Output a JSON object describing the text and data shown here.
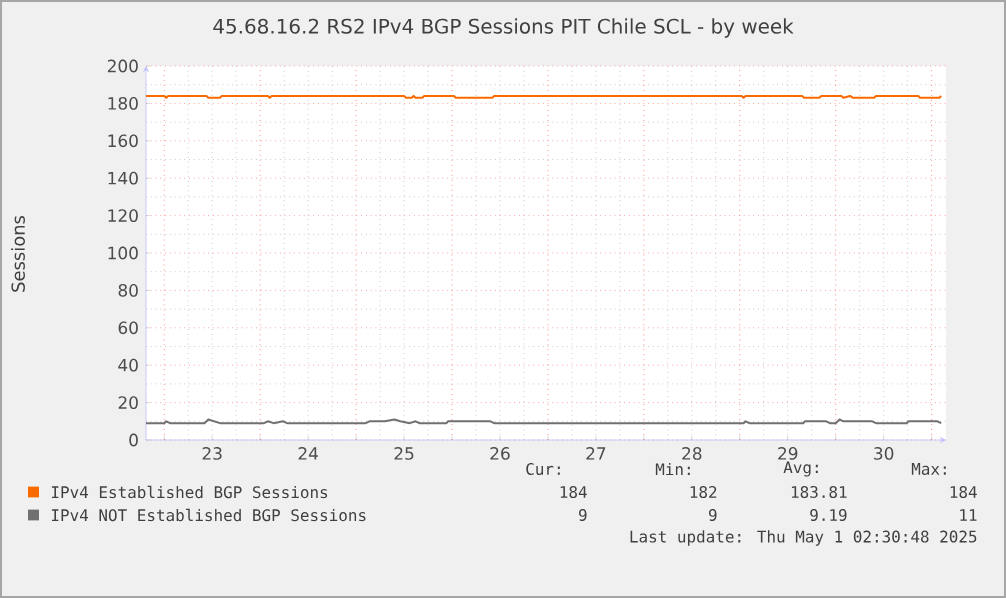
{
  "chart_data": {
    "type": "line",
    "title": "45.68.16.2 RS2 IPv4 BGP Sessions PIT Chile SCL - by week",
    "ylabel": "Sessions",
    "xlim": [
      22.81,
      31.15
    ],
    "ylim": [
      0,
      200
    ],
    "xticks": [
      {
        "value": 23,
        "label": null
      },
      {
        "value": 23.5,
        "label": "23"
      },
      {
        "value": 24,
        "label": null
      },
      {
        "value": 24.5,
        "label": "24"
      },
      {
        "value": 25,
        "label": null
      },
      {
        "value": 25.5,
        "label": "25"
      },
      {
        "value": 26,
        "label": null
      },
      {
        "value": 26.5,
        "label": "26"
      },
      {
        "value": 27,
        "label": null
      },
      {
        "value": 27.5,
        "label": "27"
      },
      {
        "value": 28,
        "label": null
      },
      {
        "value": 28.5,
        "label": "28"
      },
      {
        "value": 29,
        "label": null
      },
      {
        "value": 29.5,
        "label": "29"
      },
      {
        "value": 30,
        "label": null
      },
      {
        "value": 30.5,
        "label": "30"
      },
      {
        "value": 31,
        "label": null
      }
    ],
    "yticks": [
      0,
      20,
      40,
      60,
      80,
      100,
      120,
      140,
      160,
      180,
      200
    ],
    "grid": true,
    "legend": "bottom",
    "series": [
      {
        "name": "IPv4 Established BGP Sessions",
        "color": "#f96b00",
        "x": [
          22.81,
          23.0,
          23.02,
          23.04,
          23.44,
          23.46,
          23.58,
          23.6,
          24.08,
          24.1,
          24.12,
          25.5,
          25.52,
          25.58,
          25.6,
          25.62,
          25.69,
          25.71,
          26.02,
          26.04,
          26.42,
          26.44,
          29.02,
          29.04,
          29.06,
          29.65,
          29.67,
          29.83,
          29.85,
          30.06,
          30.08,
          30.15,
          30.18,
          30.4,
          30.42,
          30.86,
          30.88,
          31.08,
          31.1
        ],
        "values": [
          184,
          184,
          183,
          184,
          184,
          183,
          183,
          184,
          184,
          183,
          184,
          184,
          183,
          183,
          184,
          183,
          183,
          184,
          184,
          183,
          183,
          184,
          184,
          183,
          184,
          184,
          183,
          183,
          184,
          184,
          183,
          184,
          183,
          183,
          184,
          184,
          183,
          183,
          184
        ]
      },
      {
        "name": "IPv4 NOT Established BGP Sessions",
        "color": "#707070",
        "x": [
          22.81,
          23.0,
          23.02,
          23.06,
          23.42,
          23.46,
          23.52,
          23.58,
          24.04,
          24.08,
          24.14,
          24.24,
          24.28,
          25.1,
          25.14,
          25.3,
          25.4,
          25.46,
          25.56,
          25.62,
          25.66,
          25.94,
          25.96,
          26.4,
          26.44,
          29.04,
          29.06,
          29.1,
          29.66,
          29.68,
          29.9,
          29.94,
          30.0,
          30.04,
          30.08,
          30.38,
          30.42,
          30.74,
          30.76,
          31.06,
          31.1
        ],
        "values": [
          9,
          9,
          10,
          9,
          9,
          11,
          10,
          9,
          9,
          10,
          9,
          10,
          9,
          9,
          10,
          10,
          11,
          10,
          9,
          10,
          9,
          9,
          10,
          10,
          9,
          9,
          10,
          9,
          9,
          10,
          10,
          9,
          9,
          11,
          10,
          10,
          9,
          9,
          10,
          10,
          9
        ]
      }
    ],
    "annotations": [
      "Cur:",
      "Min:",
      "Avg:",
      "Max:",
      "184",
      "182",
      "183.81",
      "184",
      "9",
      "9",
      "9.19",
      "11",
      "Last update: Thu May  1 02:30:48 2025"
    ]
  }
}
